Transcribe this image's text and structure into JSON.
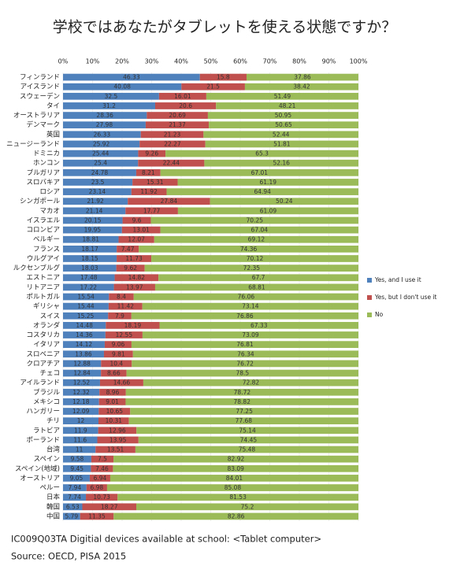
{
  "chart_data": {
    "type": "stacked-bar-horizontal",
    "title": "学校ではあなたがタブレットを使える状態ですか？",
    "categories": [
      "フィンランド",
      "アイスランド",
      "スウェーデン",
      "タイ",
      "オーストラリア",
      "デンマーク",
      "英国",
      "ニュージーランド",
      "ドミニカ",
      "ホンコン",
      "ブルガリア",
      "スロバキア",
      "ロシア",
      "シンガポール",
      "マカオ",
      "イスラエル",
      "コロンビア",
      "ベルギー",
      "フランス",
      "ウルグアイ",
      "ルクセンブルグ",
      "エストニア",
      "リトアニア",
      "ポルトガル",
      "ギリシャ",
      "スイス",
      "オランダ",
      "コスタリカ",
      "イタリア",
      "スロベニア",
      "クロアチア",
      "チェコ",
      "アイルランド",
      "ブラジル",
      "メキシコ",
      "ハンガリー",
      "チリ",
      "ラトビア",
      "ポーランド",
      "台湾",
      "スペイン",
      "スペイン(地域)",
      "オーストリア",
      "ペルー",
      "日本",
      "韓国",
      "中国"
    ],
    "series": [
      {
        "name": "Yes, and I use it",
        "color": "#4f81bd",
        "values": [
          46.33,
          40.08,
          32.5,
          31.2,
          28.36,
          27.98,
          26.33,
          25.92,
          25.44,
          25.4,
          24.78,
          23.5,
          23.14,
          21.92,
          21.14,
          20.15,
          19.95,
          18.81,
          18.17,
          18.15,
          18.03,
          17.48,
          17.22,
          15.54,
          15.44,
          15.25,
          14.48,
          14.36,
          14.12,
          13.86,
          12.88,
          12.84,
          12.52,
          12.32,
          12.18,
          12.09,
          12,
          11.9,
          11.6,
          11,
          9.58,
          9.45,
          9.05,
          7.94,
          7.74,
          6.53,
          5.79
        ]
      },
      {
        "name": "Yes, but I don't use it",
        "color": "#c0504d",
        "values": [
          15.8,
          21.5,
          16.01,
          20.6,
          20.69,
          21.37,
          21.23,
          22.27,
          9.26,
          22.44,
          8.21,
          15.31,
          11.92,
          27.84,
          17.77,
          9.6,
          13.01,
          12.07,
          7.47,
          11.73,
          9.62,
          14.82,
          13.97,
          8.4,
          11.42,
          7.9,
          18.19,
          12.55,
          9.06,
          9.81,
          10.4,
          8.66,
          14.66,
          8.96,
          9.01,
          10.65,
          10.31,
          12.96,
          13.95,
          13.51,
          7.5,
          7.46,
          6.94,
          6.98,
          10.73,
          18.27,
          11.35
        ]
      },
      {
        "name": "No",
        "color": "#9bbb59",
        "values": [
          37.86,
          38.42,
          51.49,
          48.21,
          50.95,
          50.65,
          52.44,
          51.81,
          65.3,
          52.16,
          67.01,
          61.19,
          64.94,
          50.24,
          61.09,
          70.25,
          67.04,
          69.12,
          74.36,
          70.12,
          72.35,
          67.7,
          68.81,
          76.06,
          73.14,
          76.86,
          67.33,
          73.09,
          76.81,
          76.34,
          76.72,
          78.5,
          72.82,
          78.72,
          78.82,
          77.25,
          77.68,
          75.14,
          74.45,
          75.48,
          82.92,
          83.09,
          84.01,
          85.08,
          81.53,
          75.2,
          82.86
        ]
      }
    ],
    "xlim": [
      0,
      100
    ],
    "xticks": [
      {
        "value": 0,
        "label": "0%"
      },
      {
        "value": 10,
        "label": "10%"
      },
      {
        "value": 20,
        "label": "20%"
      },
      {
        "value": 30,
        "label": "30%"
      },
      {
        "value": 40,
        "label": "40%"
      },
      {
        "value": 50,
        "label": "50%"
      },
      {
        "value": 60,
        "label": "60%"
      },
      {
        "value": 70,
        "label": "70%"
      },
      {
        "value": 80,
        "label": "80%"
      },
      {
        "value": 90,
        "label": "90%"
      },
      {
        "value": 100,
        "label": "100%"
      }
    ],
    "grid": true,
    "legend": "right",
    "caption": "IC009Q03TA Digitial devices available at school: <Tablet computer>",
    "source": "Source: OECD, PISA 2015"
  }
}
